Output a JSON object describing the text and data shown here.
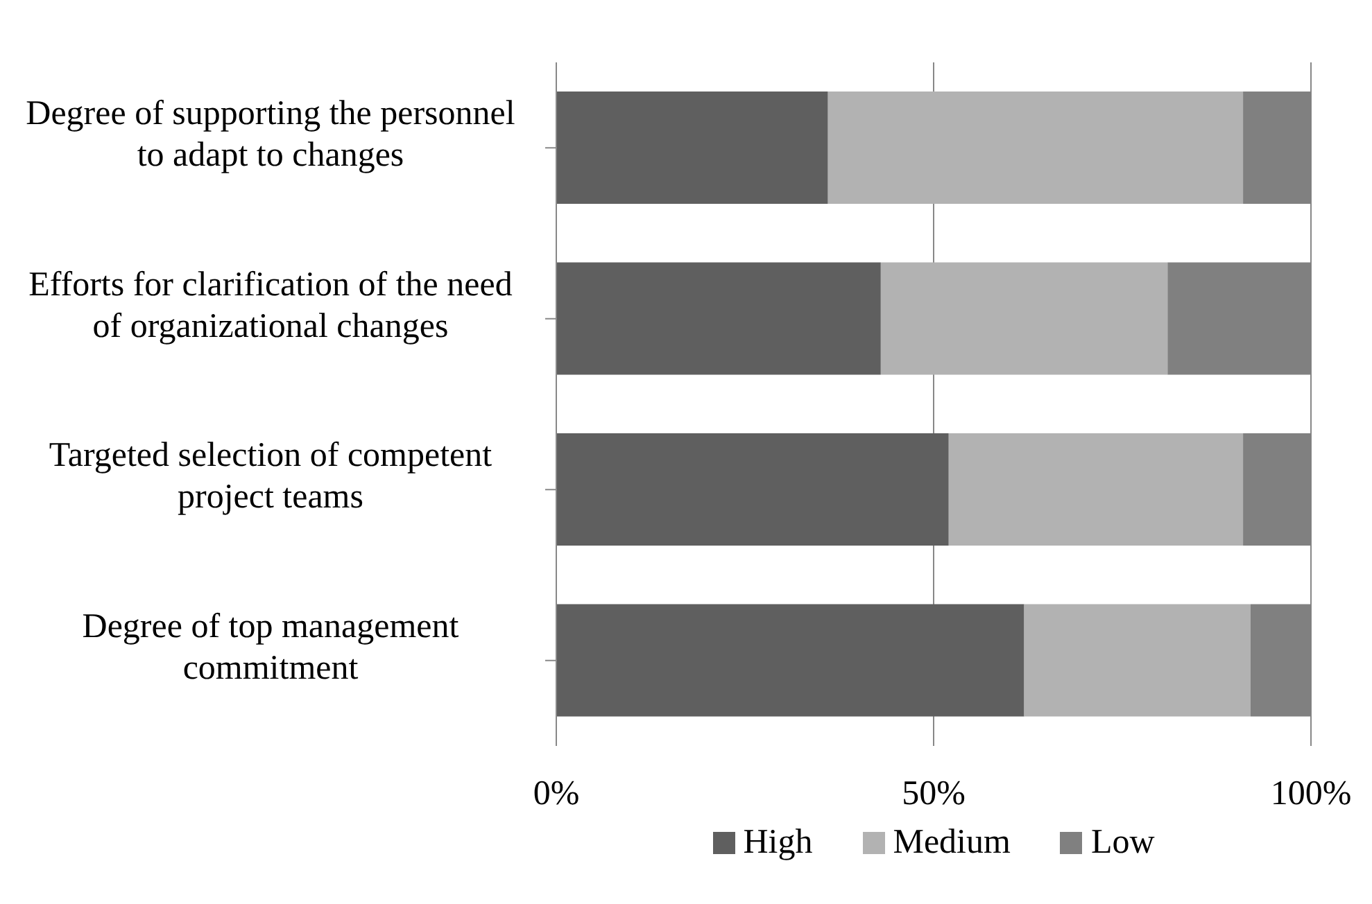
{
  "chart_data": {
    "type": "bar",
    "orientation": "horizontal",
    "stacked": true,
    "categories": [
      "Degree of supporting the personnel to adapt to changes",
      "Efforts for clarification of the need of organizational changes",
      "Targeted selection of competent project teams",
      "Degree of top management commitment"
    ],
    "series": [
      {
        "name": "High",
        "color": "#5f5f5f",
        "values": [
          36,
          43,
          52,
          62
        ]
      },
      {
        "name": "Medium",
        "color": "#b2b2b2",
        "values": [
          55,
          38,
          39,
          30
        ]
      },
      {
        "name": "Low",
        "color": "#808080",
        "values": [
          9,
          19,
          9,
          8
        ]
      }
    ],
    "xlim": [
      0,
      100
    ],
    "xticks": [
      {
        "value": 0,
        "label": "0%"
      },
      {
        "value": 50,
        "label": "50%"
      },
      {
        "value": 100,
        "label": "100%"
      }
    ],
    "grid": "x",
    "legend": "bottom"
  }
}
